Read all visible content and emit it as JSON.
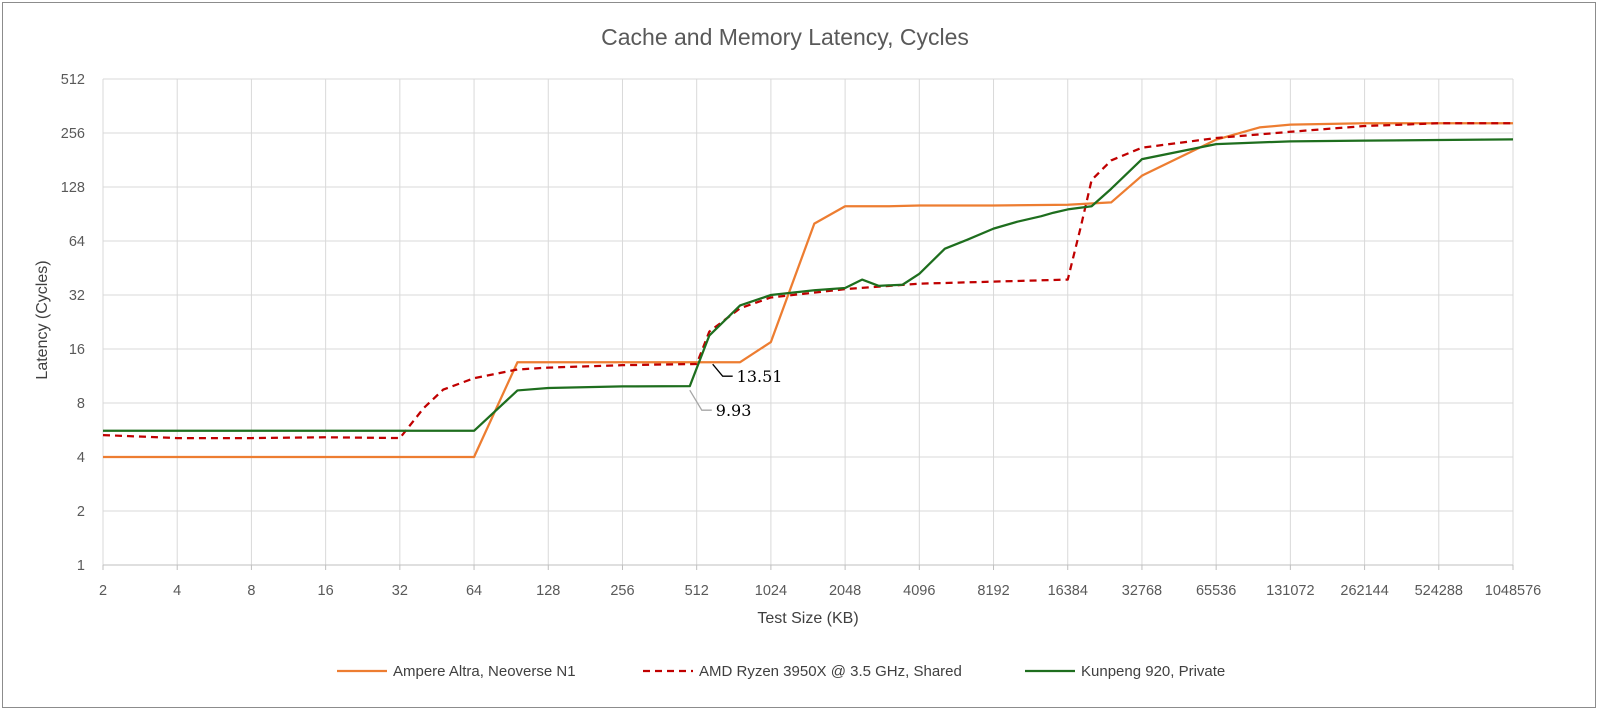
{
  "chart_data": {
    "type": "line",
    "title": "Cache and Memory Latency, Cycles",
    "xlabel": "Test Size (KB)",
    "ylabel": "Latency (Cycles)",
    "x_scale": "log2",
    "y_scale": "log2",
    "x_ticks": [
      "2",
      "4",
      "8",
      "16",
      "32",
      "64",
      "128",
      "256",
      "512",
      "1024",
      "2048",
      "4096",
      "8192",
      "16384",
      "32768",
      "65536",
      "131072",
      "262144",
      "524288",
      "1048576"
    ],
    "y_ticks": [
      "1",
      "2",
      "4",
      "8",
      "16",
      "32",
      "64",
      "128",
      "256",
      "512"
    ],
    "xlim": [
      2,
      1048576
    ],
    "ylim": [
      1,
      512
    ],
    "grid": true,
    "legend_position": "bottom",
    "series": [
      {
        "name": "Ampere Altra, Neoverse N1",
        "color": "#ED7D31",
        "dash": "solid",
        "points": [
          [
            2,
            4
          ],
          [
            4,
            4
          ],
          [
            8,
            4
          ],
          [
            16,
            4
          ],
          [
            32,
            4
          ],
          [
            64,
            4
          ],
          [
            96,
            13.5
          ],
          [
            128,
            13.5
          ],
          [
            256,
            13.5
          ],
          [
            512,
            13.5
          ],
          [
            768,
            13.5
          ],
          [
            1024,
            17.5
          ],
          [
            1536,
            80
          ],
          [
            2048,
            100
          ],
          [
            3072,
            100
          ],
          [
            4096,
            101
          ],
          [
            8192,
            101
          ],
          [
            16384,
            102
          ],
          [
            24576,
            105
          ],
          [
            32768,
            148
          ],
          [
            65536,
            235
          ],
          [
            98304,
            275
          ],
          [
            131072,
            285
          ],
          [
            262144,
            290
          ],
          [
            524288,
            290
          ],
          [
            1048576,
            290
          ]
        ]
      },
      {
        "name": "AMD Ryzen 3950X @ 3.5 GHz, Shared",
        "color": "#C00000",
        "dash": "dashed",
        "points": [
          [
            2,
            5.3
          ],
          [
            4,
            5.1
          ],
          [
            8,
            5.1
          ],
          [
            16,
            5.15
          ],
          [
            32,
            5.1
          ],
          [
            40,
            7.5
          ],
          [
            48,
            9.5
          ],
          [
            64,
            11
          ],
          [
            96,
            12.3
          ],
          [
            128,
            12.6
          ],
          [
            256,
            13
          ],
          [
            512,
            13.2
          ],
          [
            576,
            20
          ],
          [
            768,
            27
          ],
          [
            1024,
            31
          ],
          [
            2048,
            34.5
          ],
          [
            4096,
            37
          ],
          [
            8192,
            38
          ],
          [
            16384,
            39
          ],
          [
            18432,
            75
          ],
          [
            20480,
            140
          ],
          [
            24576,
            180
          ],
          [
            32768,
            212
          ],
          [
            65536,
            240
          ],
          [
            131072,
            260
          ],
          [
            262144,
            280
          ],
          [
            524288,
            290
          ],
          [
            1048576,
            290
          ]
        ]
      },
      {
        "name": "Kunpeng 920, Private",
        "color": "#1E6E1E",
        "dash": "solid",
        "points": [
          [
            2,
            5.6
          ],
          [
            4,
            5.6
          ],
          [
            8,
            5.6
          ],
          [
            16,
            5.6
          ],
          [
            32,
            5.6
          ],
          [
            64,
            5.6
          ],
          [
            96,
            9.4
          ],
          [
            128,
            9.7
          ],
          [
            256,
            9.9
          ],
          [
            480,
            9.93
          ],
          [
            576,
            19
          ],
          [
            768,
            28
          ],
          [
            1024,
            32
          ],
          [
            1536,
            34
          ],
          [
            2048,
            35
          ],
          [
            2400,
            39
          ],
          [
            2800,
            36
          ],
          [
            3500,
            36.5
          ],
          [
            4096,
            42
          ],
          [
            5200,
            58
          ],
          [
            6400,
            65
          ],
          [
            8192,
            75
          ],
          [
            10240,
            82
          ],
          [
            12800,
            88
          ],
          [
            14336,
            92
          ],
          [
            16384,
            96
          ],
          [
            20480,
            100
          ],
          [
            24576,
            125
          ],
          [
            32768,
            183
          ],
          [
            65536,
            222
          ],
          [
            131072,
            230
          ],
          [
            262144,
            232
          ],
          [
            524288,
            234
          ],
          [
            1048576,
            236
          ]
        ]
      }
    ],
    "annotations": [
      {
        "text": "13.51",
        "x": 512,
        "y": 13.51,
        "series": "Ampere Altra, Neoverse N1"
      },
      {
        "text": "9.93",
        "x": 480,
        "y": 9.93,
        "series": "Kunpeng 920, Private"
      }
    ]
  }
}
